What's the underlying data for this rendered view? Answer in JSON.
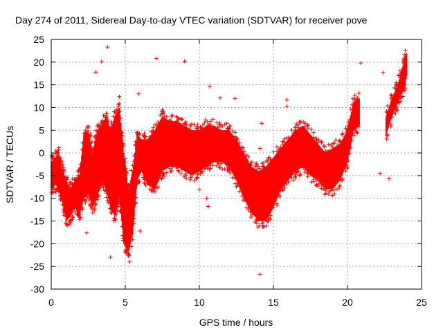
{
  "chart_data": {
    "type": "scatter",
    "title": "Day 274 of 2011, Sidereal Day-to-day VTEC variation (SDTVAR) for receiver pove",
    "xlabel": "GPS time / hours",
    "ylabel": "SDTVAR / TECUs",
    "xlim": [
      0,
      25
    ],
    "ylim": [
      -30,
      25
    ],
    "xticks": [
      0,
      5,
      10,
      15,
      20,
      25
    ],
    "yticks": [
      -30,
      -25,
      -20,
      -15,
      -10,
      -5,
      0,
      5,
      10,
      15,
      20,
      25
    ],
    "grid": true,
    "marker": "+",
    "series_color": "#ff0000",
    "envelope": [
      {
        "x": 0.0,
        "ymin": -8,
        "ymax": -2
      },
      {
        "x": 0.3,
        "ymin": -7,
        "ymax": -1
      },
      {
        "x": 0.5,
        "ymin": -8,
        "ymax": 0
      },
      {
        "x": 0.7,
        "ymin": -10,
        "ymax": -3
      },
      {
        "x": 1.0,
        "ymin": -15,
        "ymax": -6
      },
      {
        "x": 1.3,
        "ymin": -14,
        "ymax": -8
      },
      {
        "x": 1.6,
        "ymin": -12,
        "ymax": -6
      },
      {
        "x": 1.9,
        "ymin": -14,
        "ymax": -5
      },
      {
        "x": 2.2,
        "ymin": -10,
        "ymax": 4
      },
      {
        "x": 2.5,
        "ymin": -9,
        "ymax": 5
      },
      {
        "x": 2.8,
        "ymin": -12,
        "ymax": 0
      },
      {
        "x": 3.1,
        "ymin": -10,
        "ymax": 5
      },
      {
        "x": 3.4,
        "ymin": -6,
        "ymax": 6
      },
      {
        "x": 3.7,
        "ymin": -8,
        "ymax": 8
      },
      {
        "x": 4.0,
        "ymin": -12,
        "ymax": 5
      },
      {
        "x": 4.3,
        "ymin": -14,
        "ymax": 8
      },
      {
        "x": 4.6,
        "ymin": -10,
        "ymax": 10
      },
      {
        "x": 4.9,
        "ymin": -20,
        "ymax": 0
      },
      {
        "x": 5.2,
        "ymin": -22,
        "ymax": -8
      },
      {
        "x": 5.5,
        "ymin": -18,
        "ymax": -4
      },
      {
        "x": 5.8,
        "ymin": -6,
        "ymax": 4
      },
      {
        "x": 6.1,
        "ymin": -4,
        "ymax": 3
      },
      {
        "x": 6.5,
        "ymin": -7,
        "ymax": 3
      },
      {
        "x": 7.0,
        "ymin": -8,
        "ymax": 5
      },
      {
        "x": 7.5,
        "ymin": -4,
        "ymax": 8
      },
      {
        "x": 8.0,
        "ymin": -3,
        "ymax": 7
      },
      {
        "x": 8.5,
        "ymin": -3,
        "ymax": 7
      },
      {
        "x": 9.0,
        "ymin": -4,
        "ymax": 6
      },
      {
        "x": 9.5,
        "ymin": -5,
        "ymax": 5
      },
      {
        "x": 10.0,
        "ymin": -4,
        "ymax": 5
      },
      {
        "x": 10.5,
        "ymin": -3,
        "ymax": 6
      },
      {
        "x": 11.0,
        "ymin": -2,
        "ymax": 6
      },
      {
        "x": 11.5,
        "ymin": -2,
        "ymax": 5
      },
      {
        "x": 12.0,
        "ymin": -3,
        "ymax": 5
      },
      {
        "x": 12.5,
        "ymin": -6,
        "ymax": 3
      },
      {
        "x": 13.0,
        "ymin": -10,
        "ymax": 0
      },
      {
        "x": 13.5,
        "ymin": -13,
        "ymax": -3
      },
      {
        "x": 14.0,
        "ymin": -15,
        "ymax": -4
      },
      {
        "x": 14.5,
        "ymin": -15,
        "ymax": -3
      },
      {
        "x": 15.0,
        "ymin": -12,
        "ymax": -1
      },
      {
        "x": 15.5,
        "ymin": -8,
        "ymax": 1
      },
      {
        "x": 16.0,
        "ymin": -6,
        "ymax": 3
      },
      {
        "x": 16.5,
        "ymin": -4,
        "ymax": 5
      },
      {
        "x": 17.0,
        "ymin": -3,
        "ymax": 6
      },
      {
        "x": 17.5,
        "ymin": -5,
        "ymax": 4
      },
      {
        "x": 18.0,
        "ymin": -6,
        "ymax": 2
      },
      {
        "x": 18.5,
        "ymin": -8,
        "ymax": 0
      },
      {
        "x": 19.0,
        "ymin": -8,
        "ymax": 1
      },
      {
        "x": 19.5,
        "ymin": -6,
        "ymax": 2
      },
      {
        "x": 20.0,
        "ymin": -2,
        "ymax": 5
      },
      {
        "x": 20.4,
        "ymin": 5,
        "ymax": 11
      },
      {
        "x": 20.8,
        "ymin": 6,
        "ymax": 12
      },
      {
        "x": 22.6,
        "ymin": 4,
        "ymax": 8
      },
      {
        "x": 23.0,
        "ymin": 8,
        "ymax": 12
      },
      {
        "x": 23.4,
        "ymin": 11,
        "ymax": 15
      },
      {
        "x": 23.8,
        "ymin": 14,
        "ymax": 20
      },
      {
        "x": 24.0,
        "ymin": 17,
        "ymax": 22
      }
    ],
    "outliers": [
      {
        "x": 3.8,
        "y": 23.3
      },
      {
        "x": 7.1,
        "y": 20.8
      },
      {
        "x": 9.0,
        "y": 20.2
      },
      {
        "x": 3.4,
        "y": 20.1
      },
      {
        "x": 3.0,
        "y": 17.8
      },
      {
        "x": 10.7,
        "y": 14.6
      },
      {
        "x": 4.6,
        "y": 12.4
      },
      {
        "x": 5.9,
        "y": 13.0
      },
      {
        "x": 11.4,
        "y": 12.1
      },
      {
        "x": 12.4,
        "y": 12.0
      },
      {
        "x": 14.2,
        "y": 6.5
      },
      {
        "x": 14.1,
        "y": 1.0
      },
      {
        "x": 15.9,
        "y": 11.7
      },
      {
        "x": 15.9,
        "y": 10.3
      },
      {
        "x": 20.9,
        "y": 19.8
      },
      {
        "x": 22.4,
        "y": 17.7
      },
      {
        "x": 22.2,
        "y": -4.5
      },
      {
        "x": 22.8,
        "y": -5.7
      },
      {
        "x": 14.1,
        "y": -26.7
      },
      {
        "x": 10.6,
        "y": -11.8
      },
      {
        "x": 10.5,
        "y": -10.0
      },
      {
        "x": 10.0,
        "y": -8.0
      },
      {
        "x": 2.4,
        "y": -17.6
      },
      {
        "x": 6.0,
        "y": -17.2
      },
      {
        "x": 4.0,
        "y": -23.0
      },
      {
        "x": 5.3,
        "y": -24.0
      }
    ]
  }
}
